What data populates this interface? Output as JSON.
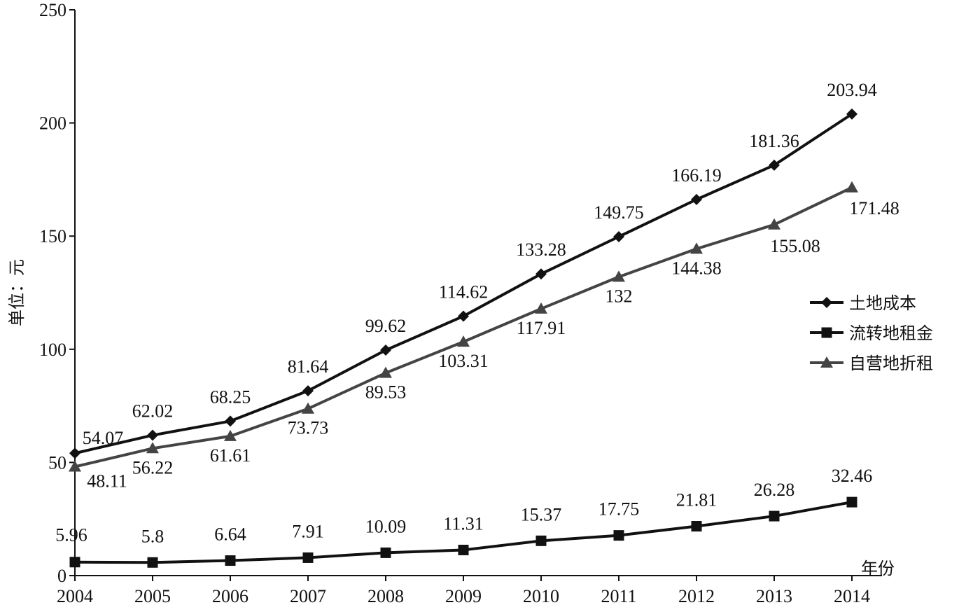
{
  "chart_data": {
    "type": "line",
    "x": [
      "2004",
      "2005",
      "2006",
      "2007",
      "2008",
      "2009",
      "2010",
      "2011",
      "2012",
      "2013",
      "2014"
    ],
    "ylabel": "单位：元",
    "xlabel": "年份",
    "ylim": [
      0,
      250
    ],
    "yticks": [
      0,
      50,
      100,
      150,
      200,
      250
    ],
    "grid": false,
    "legend_position": "right",
    "series": [
      {
        "name": "土地成本",
        "color": "#111111",
        "marker": "diamond",
        "values": [
          54.07,
          62.02,
          68.25,
          81.64,
          99.62,
          114.62,
          133.28,
          149.75,
          166.19,
          181.36,
          203.94
        ],
        "labels": [
          "54.07",
          "62.02",
          "68.25",
          "81.64",
          "99.62",
          "114.62",
          "133.28",
          "149.75",
          "166.19",
          "181.36",
          "203.94"
        ]
      },
      {
        "name": "流转地租金",
        "color": "#111111",
        "marker": "square",
        "values": [
          5.96,
          5.8,
          6.64,
          7.91,
          10.09,
          11.31,
          15.37,
          17.75,
          21.81,
          26.28,
          32.46
        ],
        "labels": [
          "5.96",
          "5.8",
          "6.64",
          "7.91",
          "10.09",
          "11.31",
          "15.37",
          "17.75",
          "21.81",
          "26.28",
          "32.46"
        ]
      },
      {
        "name": "自营地折租",
        "color": "#444444",
        "marker": "triangle",
        "values": [
          48.11,
          56.22,
          61.61,
          73.73,
          89.53,
          103.31,
          117.91,
          132,
          144.38,
          155.08,
          171.48
        ],
        "labels": [
          "48.11",
          "56.22",
          "61.61",
          "73.73",
          "89.53",
          "103.31",
          "117.91",
          "132",
          "144.38",
          "155.08",
          "171.48"
        ]
      }
    ]
  }
}
